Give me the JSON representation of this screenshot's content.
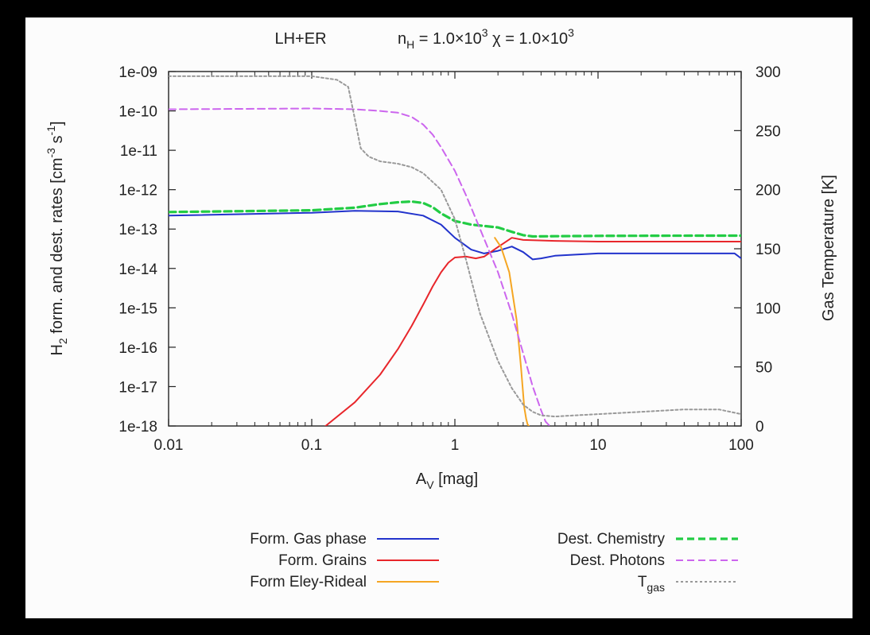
{
  "chart_data": {
    "type": "line",
    "title_left": "LH+ER",
    "title_right": {
      "nH_base": "n",
      "nH_sub": "H",
      "nH_mid": " = 1.0×10",
      "nH_sup": "3",
      "chi_mid": "  χ = 1.0×10",
      "chi_sup": "3"
    },
    "xlabel": {
      "base": "A",
      "sub": "V",
      "rest": " [mag]"
    },
    "ylabel": {
      "pre": "H",
      "sub": "2",
      "mid": " form. and dest. rates [cm",
      "sup1": "-3",
      "mid2": " s",
      "sup2": "-1",
      "post": "]"
    },
    "y2label": "Gas Temperature [K]",
    "xscale": "log",
    "yscale": "log",
    "xlim": [
      0.01,
      100
    ],
    "ylim": [
      1e-18,
      1e-09
    ],
    "y2lim": [
      0,
      300
    ],
    "x_ticks": [
      "0.01",
      "0.1",
      "1",
      "10",
      "100"
    ],
    "y_ticks": [
      "1e-18",
      "1e-17",
      "1e-16",
      "1e-15",
      "1e-14",
      "1e-13",
      "1e-12",
      "1e-11",
      "1e-10",
      "1e-09"
    ],
    "y2_ticks": [
      "0",
      "50",
      "100",
      "150",
      "200",
      "250",
      "300"
    ],
    "legend": {
      "left": [
        {
          "name": "Form. Gas phase",
          "color": "#2233cc",
          "dash": "solid"
        },
        {
          "name": "Form. Grains",
          "color": "#e8262b",
          "dash": "solid"
        },
        {
          "name": "Form  Eley-Rideal",
          "color": "#f5a623",
          "dash": "solid"
        }
      ],
      "right": [
        {
          "name": "Dest. Chemistry",
          "color": "#22cc44",
          "dash": "dashed"
        },
        {
          "name": "Dest. Photons",
          "color": "#cc66ee",
          "dash": "dashed"
        },
        {
          "name": "T",
          "sub": "gas",
          "color": "#999999",
          "dash": "dotted"
        }
      ]
    },
    "series": [
      {
        "name": "Form. Gas phase",
        "axis": "y",
        "color": "#2233cc",
        "dash": "solid",
        "x": [
          0.01,
          0.1,
          0.2,
          0.4,
          0.6,
          0.8,
          1.0,
          1.3,
          1.6,
          2.0,
          2.5,
          3.0,
          3.5,
          4.0,
          5.0,
          10,
          30,
          90,
          100
        ],
        "y": [
          2.2e-13,
          2.6e-13,
          2.9e-13,
          2.8e-13,
          2.2e-13,
          1.3e-13,
          6e-14,
          3e-14,
          2.4e-14,
          2.8e-14,
          3.6e-14,
          2.6e-14,
          1.7e-14,
          1.8e-14,
          2.1e-14,
          2.4e-14,
          2.4e-14,
          2.4e-14,
          1.8e-14
        ]
      },
      {
        "name": "Form. Grains",
        "axis": "y",
        "color": "#e8262b",
        "dash": "solid",
        "x": [
          0.125,
          0.2,
          0.3,
          0.4,
          0.5,
          0.6,
          0.7,
          0.8,
          0.9,
          1.0,
          1.2,
          1.4,
          1.6,
          2.0,
          2.5,
          3.0,
          5.0,
          10,
          50,
          100
        ],
        "y": [
          1e-18,
          4e-18,
          2e-17,
          9e-17,
          3.5e-16,
          1.2e-15,
          3.5e-15,
          8e-15,
          1.4e-14,
          1.9e-14,
          2e-14,
          1.8e-14,
          2e-14,
          3.5e-14,
          6e-14,
          5.3e-14,
          5e-14,
          4.8e-14,
          4.8e-14,
          4.8e-14
        ]
      },
      {
        "name": "Form  Eley-Rideal",
        "axis": "y",
        "color": "#f5a623",
        "dash": "solid",
        "x": [
          1.9,
          2.1,
          2.4,
          2.7,
          2.9,
          3.05,
          3.15,
          3.22,
          3.28
        ],
        "y": [
          6e-14,
          3.5e-14,
          8e-15,
          5e-16,
          3e-17,
          3e-18,
          1.5e-18,
          1.1e-18,
          1e-18
        ]
      },
      {
        "name": "Dest. Chemistry",
        "axis": "y",
        "color": "#22cc44",
        "dash": "dashed",
        "x": [
          0.01,
          0.1,
          0.2,
          0.3,
          0.4,
          0.5,
          0.6,
          0.7,
          0.8,
          1.0,
          1.3,
          1.6,
          2.0,
          2.5,
          3.0,
          3.5,
          5.0,
          10,
          50,
          100
        ],
        "y": [
          2.7e-13,
          3e-13,
          3.5e-13,
          4.3e-13,
          4.8e-13,
          5e-13,
          4.6e-13,
          3.6e-13,
          2.5e-13,
          1.6e-13,
          1.3e-13,
          1.2e-13,
          1.1e-13,
          8.5e-14,
          7e-14,
          6.5e-14,
          6.6e-14,
          6.7e-14,
          6.8e-14,
          6.8e-14
        ]
      },
      {
        "name": "Dest. Photons",
        "axis": "y",
        "color": "#cc66ee",
        "dash": "dashed",
        "x": [
          0.01,
          0.1,
          0.2,
          0.3,
          0.4,
          0.5,
          0.6,
          0.7,
          0.8,
          1.0,
          1.2,
          1.5,
          2.0,
          2.5,
          3.0,
          3.5,
          4.0,
          4.3,
          4.6
        ],
        "y": [
          1.1e-10,
          1.15e-10,
          1.1e-10,
          1e-10,
          9e-11,
          7e-11,
          4.5e-11,
          2.5e-11,
          1.2e-11,
          3e-12,
          7e-13,
          1e-13,
          8e-15,
          7e-16,
          7e-17,
          1e-17,
          2.5e-18,
          1.3e-18,
          1e-18
        ]
      },
      {
        "name": "T_gas",
        "axis": "y2",
        "color": "#999999",
        "dash": "dotted",
        "x": [
          0.01,
          0.1,
          0.15,
          0.18,
          0.2,
          0.22,
          0.25,
          0.3,
          0.4,
          0.5,
          0.6,
          0.8,
          1.0,
          1.2,
          1.5,
          2.0,
          2.5,
          3.0,
          3.5,
          4.0,
          5.0,
          7.0,
          10,
          20,
          40,
          70,
          100
        ],
        "y": [
          296,
          296,
          293,
          287,
          260,
          235,
          228,
          224,
          222,
          219,
          214,
          200,
          175,
          140,
          95,
          55,
          32,
          18,
          12,
          9,
          8,
          9,
          10,
          12,
          14,
          14,
          10
        ]
      }
    ]
  }
}
